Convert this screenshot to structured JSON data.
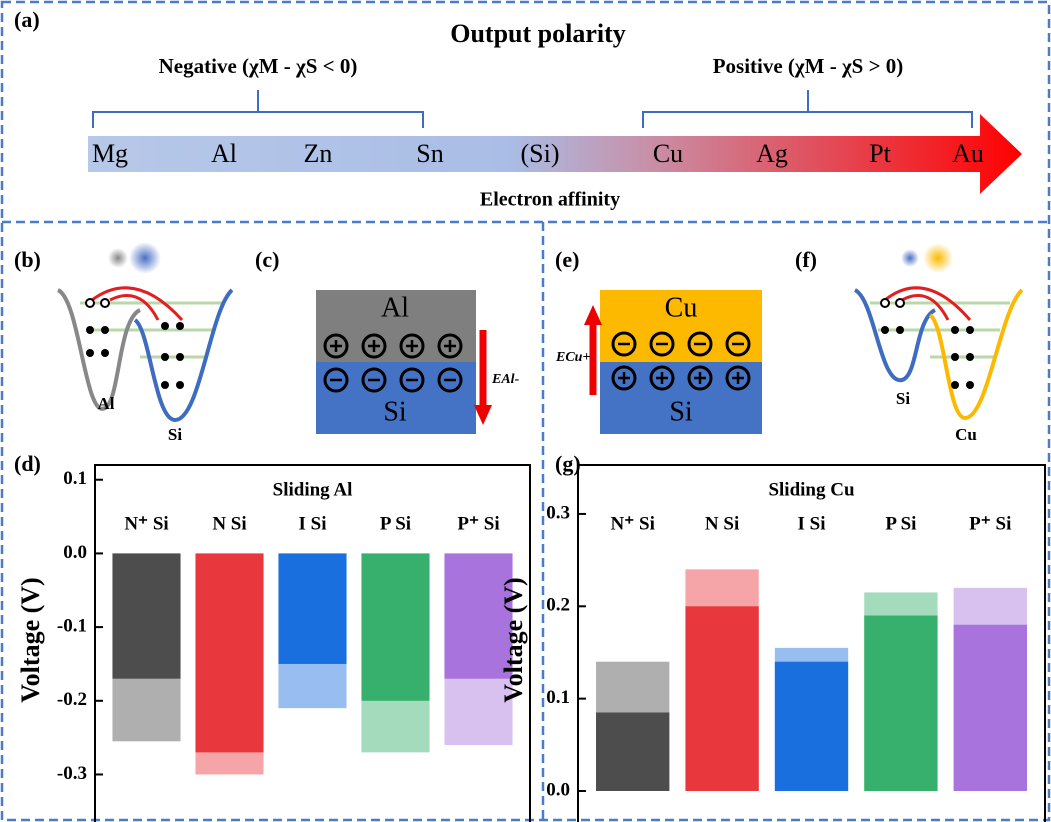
{
  "panel_labels": [
    "(a)",
    "(b)",
    "(c)",
    "(d)",
    "(e)",
    "(f)",
    "(g)"
  ],
  "polarity": {
    "title": "Output polarity",
    "negative": "Negative (χM - χS < 0)",
    "positive": "Positive (χM - χS > 0)",
    "elements": [
      "Mg",
      "Al",
      "Zn",
      "Sn",
      "(Si)",
      "Cu",
      "Ag",
      "Pt",
      "Au"
    ],
    "axis_label": "Electron affinity"
  },
  "diagram_b": {
    "left": "Al",
    "right": "Si"
  },
  "diagram_c": {
    "top": "Al",
    "bottom": "Si",
    "field": "EAl-"
  },
  "diagram_e": {
    "top": "Cu",
    "bottom": "Si",
    "field": "ECu+"
  },
  "diagram_f": {
    "left": "Si",
    "right": "Cu"
  },
  "chart_data": [
    {
      "type": "bar",
      "title": "Sliding Al",
      "ylabel": "Voltage (V)",
      "categories": [
        "N⁺ Si",
        "N Si",
        "I Si",
        "P Si",
        "P⁺ Si"
      ],
      "values": [
        -0.17,
        -0.27,
        -0.15,
        -0.2,
        -0.17
      ],
      "spikes": [
        -0.255,
        -0.3,
        -0.21,
        -0.27,
        -0.26
      ],
      "colors": [
        "#4d4d4d",
        "#e8383d",
        "#1a6fdf",
        "#36b06c",
        "#a873dc"
      ],
      "ylim": [
        -0.355,
        0.12
      ],
      "yticks": [
        -0.3,
        -0.2,
        -0.1,
        {
          "value": 0,
          "label": "0.0"
        },
        0.1
      ]
    },
    {
      "type": "bar",
      "title": "Sliding Cu",
      "ylabel": "Voltage (V)",
      "categories": [
        "N⁺ Si",
        "N Si",
        "I Si",
        "P Si",
        "P⁺ Si"
      ],
      "values": [
        0.085,
        0.2,
        0.14,
        0.19,
        0.18
      ],
      "spikes": [
        0.14,
        0.24,
        0.155,
        0.215,
        0.22
      ],
      "colors": [
        "#4d4d4d",
        "#e8383d",
        "#1a6fdf",
        "#36b06c",
        "#a873dc"
      ],
      "ylim": [
        -0.026,
        0.353
      ],
      "yticks": [
        {
          "value": 0,
          "label": "0.0"
        },
        0.1,
        0.2,
        0.3
      ]
    }
  ]
}
